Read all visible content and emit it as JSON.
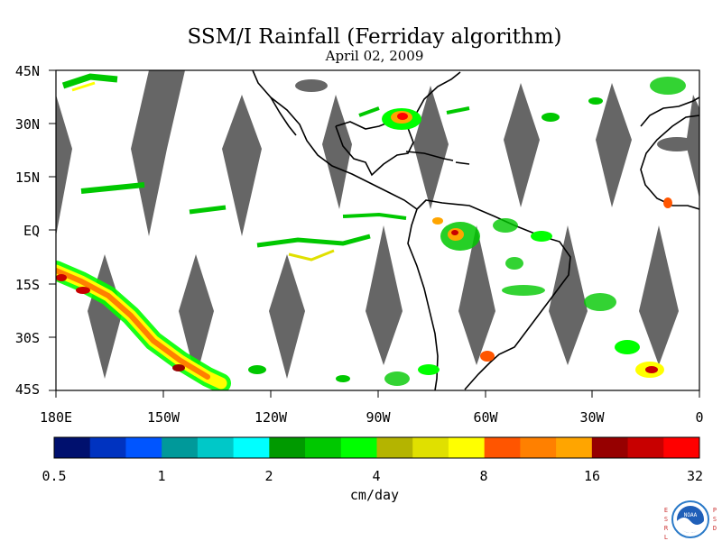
{
  "title": "SSM/I Rainfall (Ferriday algorithm)",
  "subtitle": "April 02, 2009",
  "map": {
    "lat_labels": [
      "45N",
      "30N",
      "15N",
      "EQ",
      "15S",
      "30S",
      "45S"
    ],
    "lon_labels": [
      "180E",
      "150W",
      "120W",
      "90W",
      "60W",
      "30W",
      "0"
    ],
    "extent": {
      "lon_min": -180,
      "lon_max": 0,
      "lat_min": -45,
      "lat_max": 45
    },
    "no_data_color": "#666666"
  },
  "colorbar": {
    "tick_labels": [
      "0.5",
      "1",
      "2",
      "4",
      "8",
      "16",
      "32"
    ],
    "units": "cm/day",
    "colors": [
      "#00106e",
      "#0033c0",
      "#0055ff",
      "#00999a",
      "#00c8c8",
      "#00ffff",
      "#009a00",
      "#00c800",
      "#00ff00",
      "#b4b400",
      "#e0e000",
      "#ffff00",
      "#ff5500",
      "#ff8000",
      "#ffa500",
      "#960000",
      "#c80000",
      "#ff0000"
    ]
  },
  "logo": {
    "left_letters": "ESRL",
    "right_letters": "PSD",
    "emblem": "NOAA"
  }
}
